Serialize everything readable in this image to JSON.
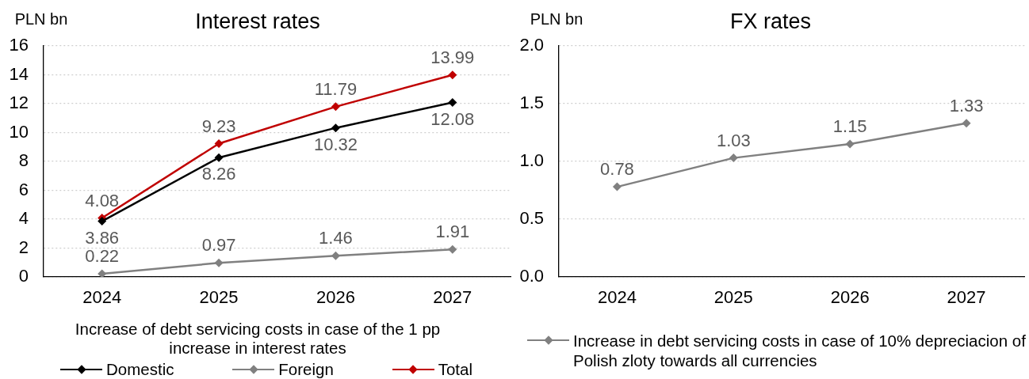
{
  "chart_data": [
    {
      "type": "line",
      "title": "Interest rates",
      "ylabel": "PLN bn",
      "legend_title": "Increase of debt servicing costs in case of the 1 pp increase in interest rates",
      "categories": [
        "2024",
        "2025",
        "2026",
        "2027"
      ],
      "series": [
        {
          "name": "Domestic",
          "color": "#000000",
          "values": [
            3.86,
            8.26,
            10.32,
            12.08
          ]
        },
        {
          "name": "Foreign",
          "color": "#808080",
          "values": [
            0.22,
            0.97,
            1.46,
            1.91
          ]
        },
        {
          "name": "Total",
          "color": "#c00000",
          "values": [
            4.08,
            9.23,
            11.79,
            13.99
          ]
        }
      ],
      "ylim": [
        0,
        16
      ],
      "yticks": [
        0,
        2,
        4,
        6,
        8,
        10,
        12,
        14,
        16
      ],
      "grid": "y",
      "legend": "bottom",
      "marker": "diamond",
      "data_labels": true
    },
    {
      "type": "line",
      "title": "FX rates",
      "ylabel": "PLN bn",
      "categories": [
        "2024",
        "2025",
        "2026",
        "2027"
      ],
      "series": [
        {
          "name": "Increase in debt servicing costs in case of 10% depreciacion of Polish zloty towards all currencies",
          "color": "#808080",
          "values": [
            0.78,
            1.03,
            1.15,
            1.33
          ]
        }
      ],
      "ylim": [
        0,
        2
      ],
      "yticks": [
        {
          "value": 0,
          "label": "0.0"
        },
        0.5,
        {
          "value": 1,
          "label": "1.0"
        },
        1.5,
        {
          "value": 2,
          "label": "2.0"
        }
      ],
      "grid": "y",
      "legend": "bottom",
      "marker": "diamond",
      "data_labels": true
    }
  ]
}
